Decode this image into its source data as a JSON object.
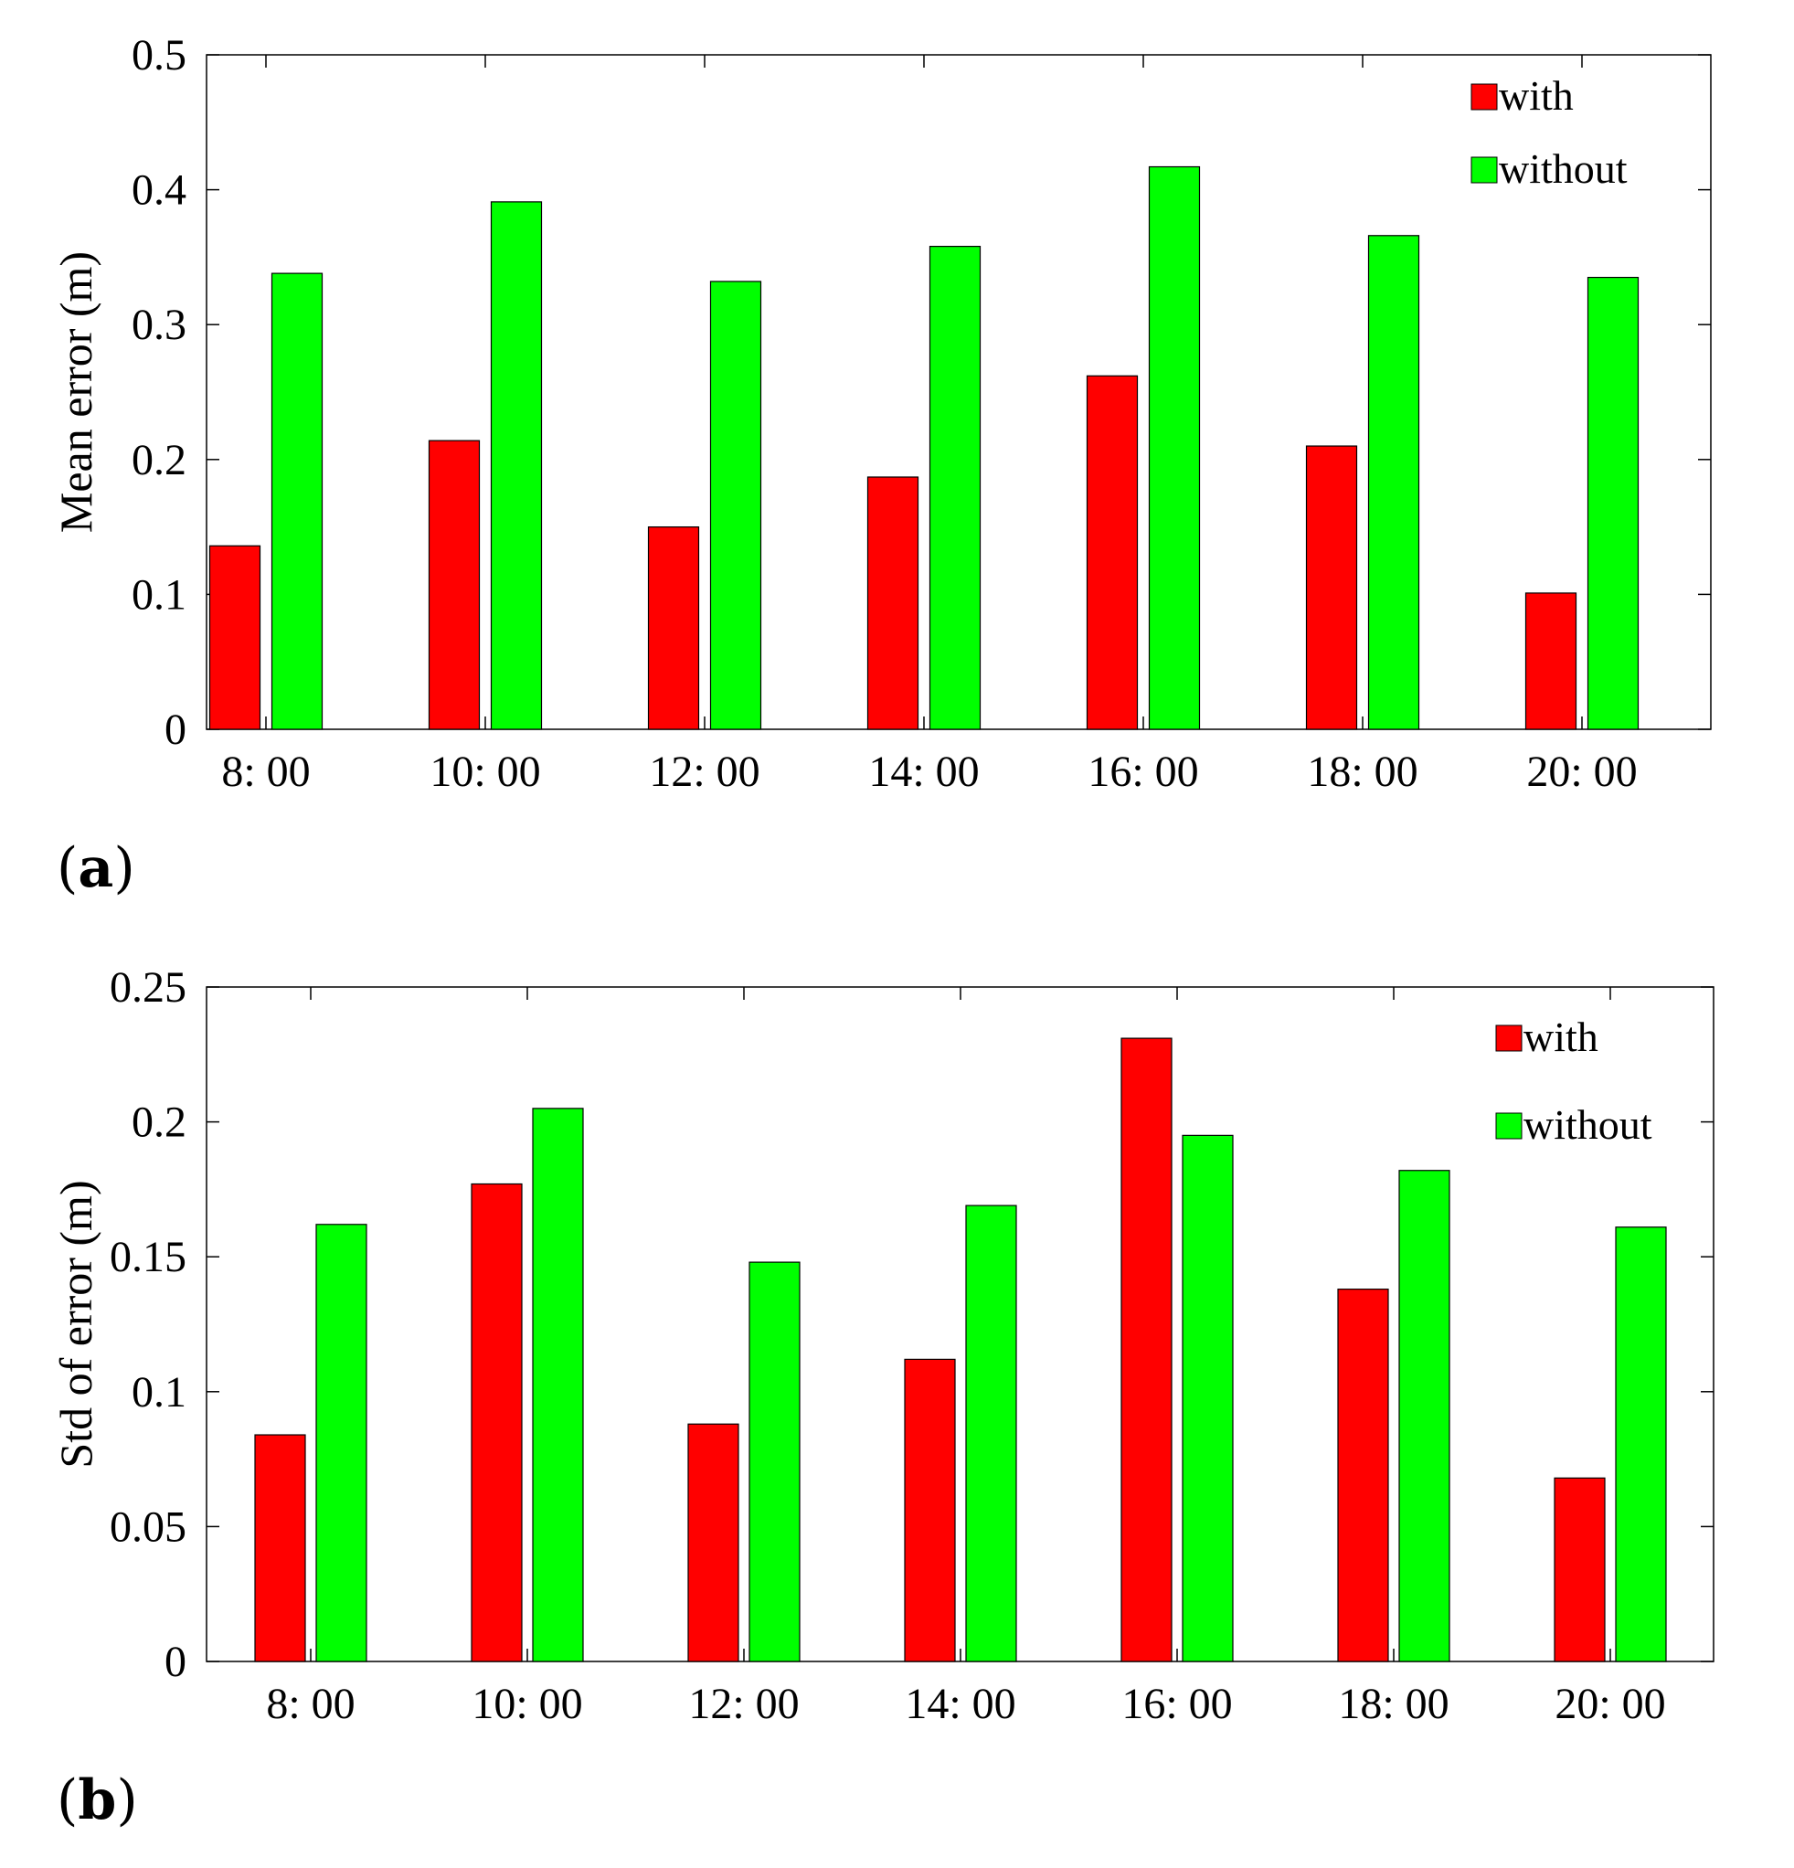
{
  "chart_data": [
    {
      "type": "bar",
      "panel_label": "a",
      "categories": [
        "8: 00",
        "10: 00",
        "12: 00",
        "14: 00",
        "16: 00",
        "18: 00",
        "20: 00"
      ],
      "series": [
        {
          "name": "with",
          "color": "#ff0000",
          "values": [
            0.136,
            0.214,
            0.15,
            0.187,
            0.262,
            0.21,
            0.101
          ]
        },
        {
          "name": "without",
          "color": "#00ff00",
          "values": [
            0.338,
            0.391,
            0.332,
            0.358,
            0.417,
            0.366,
            0.335
          ]
        }
      ],
      "ylabel": "Mean error (m)",
      "xlabel": "",
      "ylim": [
        0,
        0.5
      ],
      "yticks": [
        0,
        0.1,
        0.2,
        0.3,
        0.4,
        0.5
      ],
      "ytick_labels": [
        "0",
        "0.1",
        "0.2",
        "0.3",
        "0.4",
        "0.5"
      ],
      "legend_position": "top-right",
      "grid": false
    },
    {
      "type": "bar",
      "panel_label": "b",
      "categories": [
        "8: 00",
        "10: 00",
        "12: 00",
        "14: 00",
        "16: 00",
        "18: 00",
        "20: 00"
      ],
      "series": [
        {
          "name": "with",
          "color": "#ff0000",
          "values": [
            0.084,
            0.177,
            0.088,
            0.112,
            0.231,
            0.138,
            0.068
          ]
        },
        {
          "name": "without",
          "color": "#00ff00",
          "values": [
            0.162,
            0.205,
            0.148,
            0.169,
            0.195,
            0.182,
            0.161
          ]
        }
      ],
      "ylabel": "Std of error (m)",
      "xlabel": "",
      "ylim": [
        0,
        0.25
      ],
      "yticks": [
        0,
        0.05,
        0.1,
        0.15,
        0.2,
        0.25
      ],
      "ytick_labels": [
        "0",
        "0.05",
        "0.1",
        "0.15",
        "0.2",
        "0.25"
      ],
      "legend_position": "top-right",
      "grid": false
    }
  ]
}
